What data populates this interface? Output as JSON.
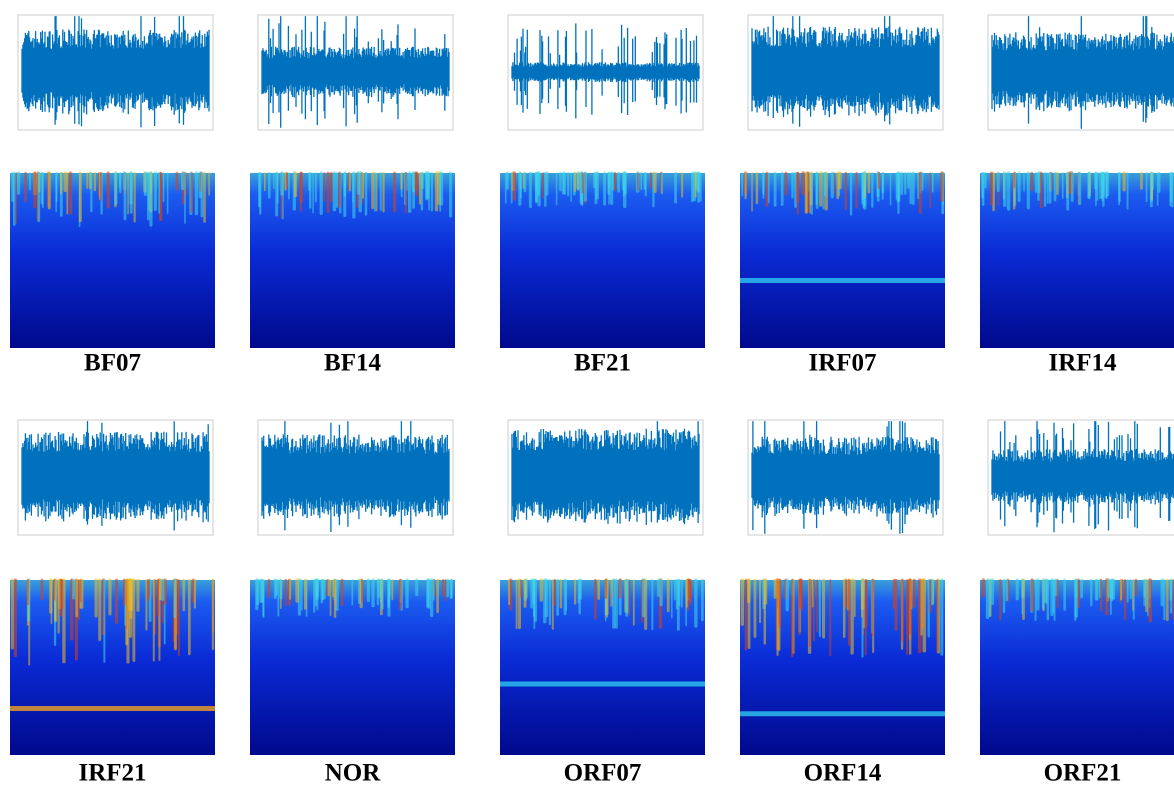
{
  "panels": [
    {
      "label": "BF07"
    },
    {
      "label": "BF14"
    },
    {
      "label": "BF21"
    },
    {
      "label": "IRF07"
    },
    {
      "label": "IRF14"
    },
    {
      "label": "IRF21"
    },
    {
      "label": "NOR"
    },
    {
      "label": "ORF07"
    },
    {
      "label": "ORF14"
    },
    {
      "label": "ORF21"
    }
  ]
}
